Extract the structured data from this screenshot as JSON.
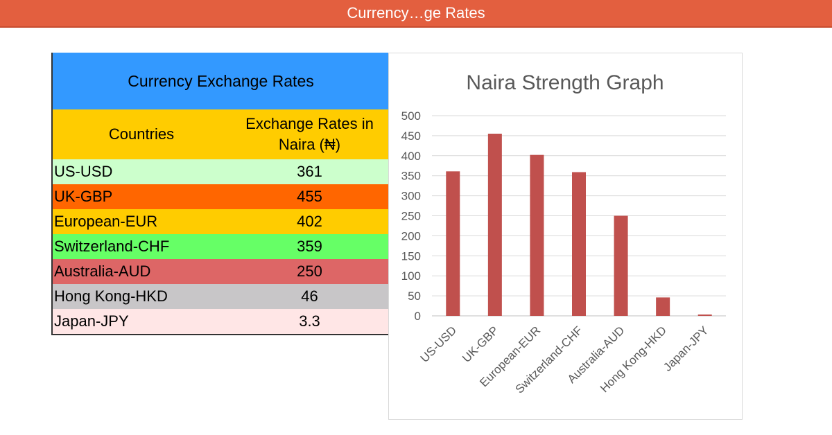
{
  "window": {
    "title": "Currency…ge Rates"
  },
  "table": {
    "title": "Currency Exchange Rates",
    "headers": {
      "country": "Countries",
      "rate_line1": "Exchange Rates in",
      "rate_line2": "Naira (₦)"
    },
    "rows": [
      {
        "country": "US-USD",
        "rate": "361",
        "color": "#ccffcc"
      },
      {
        "country": "UK-GBP",
        "rate": "455",
        "color": "#ff6600"
      },
      {
        "country": "European-EUR",
        "rate": "402",
        "color": "#ffcc00"
      },
      {
        "country": "Switzerland-CHF",
        "rate": "359",
        "color": "#66ff66"
      },
      {
        "country": "Australia-AUD",
        "rate": "250",
        "color": "#dd6666"
      },
      {
        "country": "Hong Kong-HKD",
        "rate": "46",
        "color": "#c8c6c8"
      },
      {
        "country": "Japan-JPY",
        "rate": "3.3",
        "color": "#ffe6e6"
      }
    ]
  },
  "chart_data": {
    "type": "bar",
    "title": "Naira Strength Graph",
    "categories": [
      "US-USD",
      "UK-GBP",
      "European-EUR",
      "Switzerland-CHF",
      "Australia-AUD",
      "Hong Kong-HKD",
      "Japan-JPY"
    ],
    "values": [
      361,
      455,
      402,
      359,
      250,
      46,
      3.3
    ],
    "ylim": [
      0,
      500
    ],
    "yticks": [
      0,
      50,
      100,
      150,
      200,
      250,
      300,
      350,
      400,
      450,
      500
    ],
    "grid": true,
    "legend": "none",
    "bar_color": "#c0504d"
  }
}
